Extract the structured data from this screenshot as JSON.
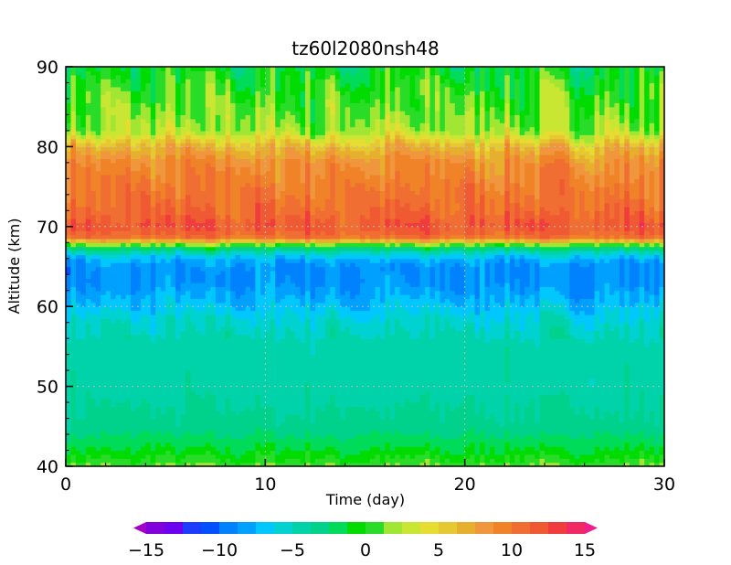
{
  "chart_data": {
    "type": "heatmap",
    "title": "tz60l2080nsh48",
    "xlabel": "Time (day)",
    "ylabel": "Altitude (km)",
    "xlim": [
      0,
      30
    ],
    "ylim": [
      40,
      90
    ],
    "xticks": [
      0,
      10,
      20,
      30
    ],
    "xtick_labels": [
      "0",
      "10",
      "20",
      "30"
    ],
    "yticks": [
      40,
      50,
      60,
      70,
      80,
      90
    ],
    "ytick_labels": [
      "40",
      "50",
      "60",
      "70",
      "80",
      "90"
    ],
    "grid": true,
    "colorbar": {
      "placement": "bottom",
      "min": -15,
      "max": 15,
      "ticks": [
        -15,
        -10,
        -5,
        0,
        5,
        10,
        15
      ],
      "tick_labels": [
        "−15",
        "−10",
        "−5",
        "0",
        "5",
        "10",
        "15"
      ],
      "colors": [
        "#a000c8",
        "#8200dc",
        "#6e00f0",
        "#1e3cff",
        "#0050ff",
        "#0082ff",
        "#00a0ff",
        "#00c8ff",
        "#00d2d2",
        "#00d2aa",
        "#00d28c",
        "#00dc5a",
        "#00dc00",
        "#28dc28",
        "#a0e632",
        "#c8e632",
        "#e6dc32",
        "#e6c832",
        "#e6af2d",
        "#f0963c",
        "#f08228",
        "#f06e32",
        "#f05a32",
        "#f03c3c",
        "#f02864",
        "#f01e8c"
      ]
    },
    "altitude_levels": [
      40,
      42,
      45,
      50,
      55,
      58,
      61,
      63,
      65,
      66,
      67,
      67.5,
      68,
      68.5,
      69,
      70,
      72,
      75,
      78,
      80,
      82,
      85,
      88,
      90
    ],
    "mean_profile": [
      1,
      -1,
      -3,
      -4,
      -4,
      -5,
      -7,
      -8,
      -8,
      -7,
      -4,
      -1,
      3,
      9,
      10,
      11,
      10,
      9,
      8,
      6,
      2,
      1,
      0,
      -1
    ]
  }
}
